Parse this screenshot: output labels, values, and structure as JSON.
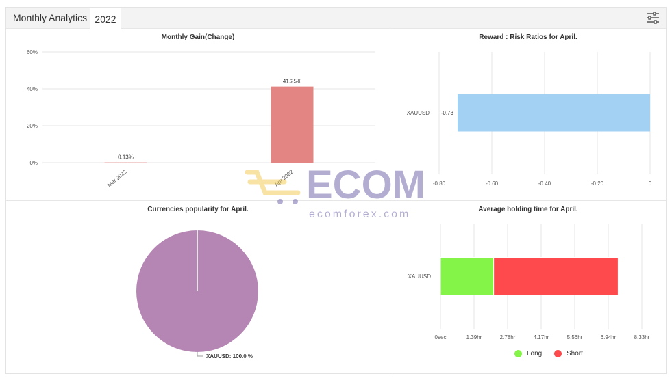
{
  "header": {
    "tabs": [
      {
        "label": "Monthly Analytics"
      },
      {
        "label": "2022"
      }
    ],
    "settings_icon": "sliders-icon"
  },
  "watermark": {
    "brand": "ECOM",
    "site": "ecomforex.com"
  },
  "chart_data": [
    {
      "type": "bar",
      "title": "Monthly Gain(Change)",
      "categories": [
        "Mar 2022",
        "Apr 2022"
      ],
      "values": [
        0.13,
        41.25
      ],
      "value_labels": [
        "0.13%",
        "41.25%"
      ],
      "y_ticks": [
        "60%",
        "40%",
        "20%",
        "0%"
      ],
      "ylim": [
        0,
        60
      ],
      "color": "#e38683",
      "grid": true
    },
    {
      "type": "bar",
      "orientation": "horizontal",
      "title": "Reward : Risk Ratios for April.",
      "categories": [
        "XAUUSD"
      ],
      "values": [
        -0.73
      ],
      "value_labels": [
        "-0.73"
      ],
      "x_ticks": [
        "-0.80",
        "-0.60",
        "-0.40",
        "-0.20",
        "0"
      ],
      "xlim": [
        -0.8,
        0
      ],
      "color": "#a2d1f4",
      "grid": true
    },
    {
      "type": "pie",
      "title": "Currencies popularity for April.",
      "slices": [
        {
          "label": "XAUUSD",
          "value": 100.0
        }
      ],
      "slice_labels": [
        "XAUUSD: 100.0 %"
      ],
      "color": "#b586b3"
    },
    {
      "type": "bar",
      "orientation": "horizontal",
      "stacked": true,
      "title": "Average holding time for April.",
      "categories": [
        "XAUUSD"
      ],
      "series": [
        {
          "name": "Long",
          "values": [
            2.2
          ],
          "color": "#84f548"
        },
        {
          "name": "Short",
          "values": [
            5.15
          ],
          "color": "#fe4a4c"
        }
      ],
      "x_ticks": [
        "0sec",
        "1.39hr",
        "2.78hr",
        "4.17hr",
        "5.56hr",
        "6.94hr",
        "8.33hr"
      ],
      "xlim": [
        0,
        8.33
      ],
      "unit": "hours",
      "legend_position": "bottom",
      "grid": true
    }
  ]
}
